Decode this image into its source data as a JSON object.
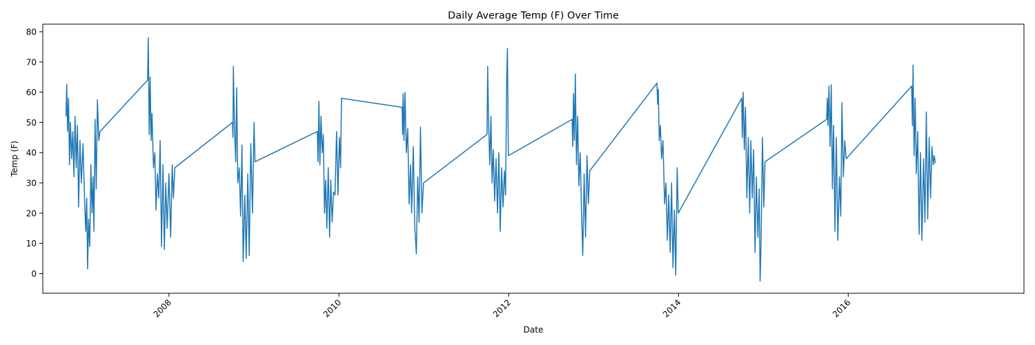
{
  "chart_data": {
    "type": "line",
    "title": "Daily Average Temp (F) Over Time",
    "xlabel": "Date",
    "ylabel": "Temp (F)",
    "x_ticks": [
      "2008",
      "2010",
      "2012",
      "2014",
      "2016"
    ],
    "y_ticks": [
      0,
      10,
      20,
      30,
      40,
      50,
      60,
      70,
      80
    ],
    "xlim": [
      "2006-07-07",
      "2018-01-26"
    ],
    "ylim": [
      -6.5,
      82.5
    ],
    "grid": false,
    "legend": "none",
    "colors": {
      "line": "#1f77b4"
    },
    "series": [
      {
        "points": [
          [
            "2006-10-15",
            52
          ],
          [
            "2006-10-18",
            62.7
          ],
          [
            "2006-10-22",
            47
          ],
          [
            "2006-10-26",
            58
          ],
          [
            "2006-10-30",
            36
          ],
          [
            "2006-11-03",
            50
          ],
          [
            "2006-11-08",
            38
          ],
          [
            "2006-11-13",
            47
          ],
          [
            "2006-11-18",
            32
          ],
          [
            "2006-11-23",
            52
          ],
          [
            "2006-11-28",
            35
          ],
          [
            "2006-12-03",
            49
          ],
          [
            "2006-12-08",
            22
          ],
          [
            "2006-12-14",
            44
          ],
          [
            "2006-12-20",
            30
          ],
          [
            "2006-12-27",
            43
          ],
          [
            "2007-01-03",
            24
          ],
          [
            "2007-01-08",
            14
          ],
          [
            "2007-01-12",
            25
          ],
          [
            "2007-01-16",
            1.5
          ],
          [
            "2007-01-20",
            18
          ],
          [
            "2007-01-25",
            9
          ],
          [
            "2007-01-30",
            36
          ],
          [
            "2007-02-04",
            20
          ],
          [
            "2007-02-08",
            32
          ],
          [
            "2007-02-12",
            14
          ],
          [
            "2007-02-17",
            51
          ],
          [
            "2007-02-22",
            28
          ],
          [
            "2007-02-27",
            57.5
          ],
          [
            "2007-03-05",
            44
          ],
          [
            "2007-03-10",
            47
          ],
          [
            "2007-10-01",
            64
          ],
          [
            "2007-10-04",
            78
          ],
          [
            "2007-10-08",
            46
          ],
          [
            "2007-10-12",
            65
          ],
          [
            "2007-10-16",
            44
          ],
          [
            "2007-10-20",
            53
          ],
          [
            "2007-10-26",
            35
          ],
          [
            "2007-11-01",
            40
          ],
          [
            "2007-11-06",
            21
          ],
          [
            "2007-11-12",
            33
          ],
          [
            "2007-11-18",
            25
          ],
          [
            "2007-11-24",
            44
          ],
          [
            "2007-11-30",
            9
          ],
          [
            "2007-12-06",
            36
          ],
          [
            "2007-12-12",
            8
          ],
          [
            "2007-12-18",
            30
          ],
          [
            "2007-12-24",
            15
          ],
          [
            "2008-01-01",
            33
          ],
          [
            "2008-01-08",
            12
          ],
          [
            "2008-01-15",
            36
          ],
          [
            "2008-01-20",
            25
          ],
          [
            "2008-01-26",
            35
          ],
          [
            "2008-09-30",
            50
          ],
          [
            "2008-10-02",
            45
          ],
          [
            "2008-10-04",
            68.5
          ],
          [
            "2008-10-09",
            48
          ],
          [
            "2008-10-14",
            37
          ],
          [
            "2008-10-18",
            61.5
          ],
          [
            "2008-10-23",
            30
          ],
          [
            "2008-10-29",
            35
          ],
          [
            "2008-11-04",
            19
          ],
          [
            "2008-11-10",
            42.5
          ],
          [
            "2008-11-15",
            4
          ],
          [
            "2008-11-22",
            26
          ],
          [
            "2008-11-28",
            5
          ],
          [
            "2008-12-05",
            33
          ],
          [
            "2008-12-11",
            6
          ],
          [
            "2008-12-18",
            43
          ],
          [
            "2008-12-25",
            20
          ],
          [
            "2009-01-01",
            50
          ],
          [
            "2009-01-05",
            37
          ],
          [
            "2009-09-30",
            47
          ],
          [
            "2009-10-03",
            37
          ],
          [
            "2009-10-07",
            57
          ],
          [
            "2009-10-11",
            36
          ],
          [
            "2009-10-16",
            52
          ],
          [
            "2009-10-21",
            40
          ],
          [
            "2009-10-26",
            46
          ],
          [
            "2009-10-31",
            20
          ],
          [
            "2009-11-05",
            31
          ],
          [
            "2009-11-10",
            15
          ],
          [
            "2009-11-16",
            35
          ],
          [
            "2009-11-22",
            12
          ],
          [
            "2009-11-27",
            31
          ],
          [
            "2009-12-03",
            17
          ],
          [
            "2009-12-09",
            27
          ],
          [
            "2009-12-15",
            26
          ],
          [
            "2009-12-22",
            47
          ],
          [
            "2009-12-28",
            26
          ],
          [
            "2010-01-03",
            45
          ],
          [
            "2010-01-08",
            35
          ],
          [
            "2010-01-12",
            58
          ],
          [
            "2010-09-30",
            55
          ],
          [
            "2010-10-02",
            46
          ],
          [
            "2010-10-04",
            59.5
          ],
          [
            "2010-10-08",
            44
          ],
          [
            "2010-10-12",
            60
          ],
          [
            "2010-10-18",
            40
          ],
          [
            "2010-10-24",
            48
          ],
          [
            "2010-10-30",
            23
          ],
          [
            "2010-11-05",
            36
          ],
          [
            "2010-11-10",
            20
          ],
          [
            "2010-11-17",
            42
          ],
          [
            "2010-11-23",
            16
          ],
          [
            "2010-11-30",
            6.5
          ],
          [
            "2010-12-06",
            32
          ],
          [
            "2010-12-12",
            17
          ],
          [
            "2010-12-18",
            48.5
          ],
          [
            "2010-12-24",
            20
          ],
          [
            "2010-12-31",
            30
          ],
          [
            "2011-09-30",
            46
          ],
          [
            "2011-10-03",
            68.5
          ],
          [
            "2011-10-07",
            50
          ],
          [
            "2011-10-12",
            36
          ],
          [
            "2011-10-17",
            52
          ],
          [
            "2011-10-22",
            30
          ],
          [
            "2011-10-27",
            41
          ],
          [
            "2011-11-02",
            24
          ],
          [
            "2011-11-08",
            38
          ],
          [
            "2011-11-14",
            20
          ],
          [
            "2011-11-20",
            40
          ],
          [
            "2011-11-26",
            14
          ],
          [
            "2011-12-02",
            35
          ],
          [
            "2011-12-08",
            22
          ],
          [
            "2011-12-14",
            34
          ],
          [
            "2011-12-19",
            26
          ],
          [
            "2011-12-24",
            65
          ],
          [
            "2011-12-27",
            74.5
          ],
          [
            "2011-12-31",
            39
          ],
          [
            "2012-09-30",
            51
          ],
          [
            "2012-10-03",
            42
          ],
          [
            "2012-10-06",
            59.5
          ],
          [
            "2012-10-10",
            44
          ],
          [
            "2012-10-14",
            66
          ],
          [
            "2012-10-19",
            36
          ],
          [
            "2012-10-24",
            52
          ],
          [
            "2012-10-29",
            29
          ],
          [
            "2012-11-04",
            40
          ],
          [
            "2012-11-10",
            19
          ],
          [
            "2012-11-15",
            6
          ],
          [
            "2012-11-21",
            33
          ],
          [
            "2012-11-27",
            12
          ],
          [
            "2012-12-03",
            39
          ],
          [
            "2012-12-09",
            23
          ],
          [
            "2012-12-15",
            34
          ],
          [
            "2013-09-30",
            63
          ],
          [
            "2013-10-03",
            56
          ],
          [
            "2013-10-06",
            61
          ],
          [
            "2013-10-10",
            44
          ],
          [
            "2013-10-15",
            49
          ],
          [
            "2013-10-20",
            38
          ],
          [
            "2013-10-26",
            44
          ],
          [
            "2013-11-02",
            23
          ],
          [
            "2013-11-08",
            30
          ],
          [
            "2013-11-14",
            11
          ],
          [
            "2013-11-20",
            26
          ],
          [
            "2013-11-26",
            7
          ],
          [
            "2013-12-02",
            30
          ],
          [
            "2013-12-08",
            2
          ],
          [
            "2013-12-14",
            21
          ],
          [
            "2013-12-20",
            -0.5
          ],
          [
            "2013-12-26",
            35
          ],
          [
            "2013-12-31",
            20
          ],
          [
            "2014-09-30",
            58
          ],
          [
            "2014-10-02",
            45
          ],
          [
            "2014-10-06",
            60
          ],
          [
            "2014-10-11",
            41
          ],
          [
            "2014-10-16",
            55
          ],
          [
            "2014-10-22",
            25
          ],
          [
            "2014-10-28",
            45
          ],
          [
            "2014-11-03",
            20
          ],
          [
            "2014-11-08",
            44
          ],
          [
            "2014-11-14",
            25
          ],
          [
            "2014-11-20",
            41
          ],
          [
            "2014-11-26",
            7
          ],
          [
            "2014-12-02",
            32
          ],
          [
            "2014-12-08",
            12
          ],
          [
            "2014-12-14",
            28
          ],
          [
            "2014-12-18",
            -2.5
          ],
          [
            "2014-12-22",
            10
          ],
          [
            "2014-12-28",
            45
          ],
          [
            "2015-01-03",
            22
          ],
          [
            "2015-01-08",
            37
          ],
          [
            "2015-09-30",
            51
          ],
          [
            "2015-10-03",
            58
          ],
          [
            "2015-10-06",
            49
          ],
          [
            "2015-10-10",
            62
          ],
          [
            "2015-10-15",
            42
          ],
          [
            "2015-10-20",
            62.5
          ],
          [
            "2015-10-25",
            28
          ],
          [
            "2015-10-30",
            49
          ],
          [
            "2015-11-05",
            14
          ],
          [
            "2015-11-11",
            45
          ],
          [
            "2015-11-17",
            11
          ],
          [
            "2015-11-24",
            32
          ],
          [
            "2015-11-30",
            19
          ],
          [
            "2015-12-05",
            56.5
          ],
          [
            "2015-12-11",
            32
          ],
          [
            "2015-12-17",
            44
          ],
          [
            "2015-12-23",
            38
          ],
          [
            "2016-09-30",
            62
          ],
          [
            "2016-10-03",
            49
          ],
          [
            "2016-10-06",
            69
          ],
          [
            "2016-10-10",
            39
          ],
          [
            "2016-10-15",
            58
          ],
          [
            "2016-10-20",
            33
          ],
          [
            "2016-10-26",
            47
          ],
          [
            "2016-11-01",
            13
          ],
          [
            "2016-11-07",
            40
          ],
          [
            "2016-11-13",
            11
          ],
          [
            "2016-11-20",
            38
          ],
          [
            "2016-11-26",
            17
          ],
          [
            "2016-12-02",
            53.5
          ],
          [
            "2016-12-08",
            18
          ],
          [
            "2016-12-14",
            45
          ],
          [
            "2016-12-20",
            25
          ],
          [
            "2016-12-26",
            42
          ],
          [
            "2017-01-01",
            36
          ],
          [
            "2017-01-05",
            39
          ],
          [
            "2017-01-10",
            36.5
          ]
        ]
      }
    ]
  }
}
